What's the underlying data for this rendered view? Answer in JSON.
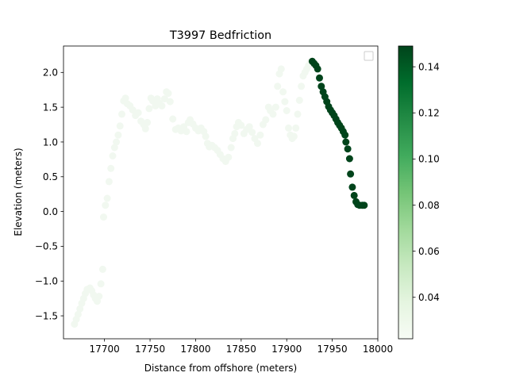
{
  "chart_data": {
    "type": "scatter",
    "title": "T3997 Bedfriction",
    "xlabel": "Distance from offshore (meters)",
    "ylabel": "Elevation (meters)",
    "xlim": [
      17655,
      18000
    ],
    "ylim": [
      -1.83,
      2.38
    ],
    "x_ticks": [
      17700,
      17750,
      17800,
      17850,
      17900,
      17950,
      18000
    ],
    "y_ticks": [
      -1.5,
      -1.0,
      -0.5,
      0.0,
      0.5,
      1.0,
      1.5,
      2.0
    ],
    "grid": false,
    "legend": "top-right (empty)",
    "colormap": "Greens",
    "colorbar": {
      "range": [
        0.022,
        0.149
      ],
      "ticks": [
        0.04,
        0.06,
        0.08,
        0.1,
        0.12,
        0.14
      ],
      "low_color": "#f7fcf5",
      "high_color": "#00441b"
    },
    "series": [
      {
        "bedfriction": 0.025,
        "points": [
          [
            17667,
            -1.62
          ],
          [
            17669,
            -1.55
          ],
          [
            17671,
            -1.48
          ],
          [
            17673,
            -1.4
          ],
          [
            17675,
            -1.32
          ],
          [
            17677,
            -1.25
          ],
          [
            17679,
            -1.18
          ],
          [
            17681,
            -1.12
          ],
          [
            17684,
            -1.1
          ],
          [
            17686,
            -1.14
          ],
          [
            17688,
            -1.2
          ],
          [
            17690,
            -1.25
          ],
          [
            17692,
            -1.29
          ],
          [
            17694,
            -1.22
          ],
          [
            17696,
            -1.04
          ],
          [
            17698,
            -0.83
          ],
          [
            17699,
            -0.08
          ],
          [
            17701,
            0.09
          ],
          [
            17703,
            0.19
          ],
          [
            17705,
            0.43
          ],
          [
            17707,
            0.62
          ],
          [
            17709,
            0.8
          ],
          [
            17711,
            0.92
          ],
          [
            17713,
            1.0
          ],
          [
            17715,
            1.1
          ],
          [
            17717,
            1.23
          ],
          [
            17719,
            1.4
          ],
          [
            17721,
            1.59
          ],
          [
            17723,
            1.63
          ],
          [
            17725,
            1.55
          ],
          [
            17728,
            1.52
          ],
          [
            17731,
            1.46
          ],
          [
            17734,
            1.38
          ],
          [
            17737,
            1.42
          ],
          [
            17740,
            1.3
          ],
          [
            17743,
            1.25
          ],
          [
            17745,
            1.19
          ],
          [
            17747,
            1.28
          ],
          [
            17749,
            1.48
          ],
          [
            17751,
            1.63
          ],
          [
            17753,
            1.59
          ],
          [
            17756,
            1.52
          ],
          [
            17758,
            1.62
          ],
          [
            17760,
            1.56
          ],
          [
            17763,
            1.52
          ],
          [
            17766,
            1.62
          ],
          [
            17768,
            1.72
          ],
          [
            17770,
            1.7
          ],
          [
            17772,
            1.58
          ],
          [
            17775,
            1.33
          ],
          [
            17778,
            1.18
          ],
          [
            17781,
            1.2
          ],
          [
            17784,
            1.16
          ],
          [
            17787,
            1.22
          ],
          [
            17790,
            1.15
          ],
          [
            17792,
            1.28
          ],
          [
            17794,
            1.32
          ],
          [
            17797,
            1.26
          ],
          [
            17800,
            1.2
          ],
          [
            17803,
            1.16
          ],
          [
            17806,
            1.2
          ],
          [
            17809,
            1.15
          ],
          [
            17811,
            1.08
          ],
          [
            17813,
            0.98
          ],
          [
            17815,
            0.93
          ],
          [
            17818,
            0.95
          ],
          [
            17821,
            0.92
          ],
          [
            17824,
            0.88
          ],
          [
            17827,
            0.82
          ],
          [
            17830,
            0.76
          ],
          [
            17833,
            0.72
          ],
          [
            17836,
            0.78
          ],
          [
            17839,
            0.92
          ],
          [
            17841,
            1.05
          ],
          [
            17843,
            1.12
          ],
          [
            17845,
            1.22
          ],
          [
            17847,
            1.28
          ],
          [
            17850,
            1.24
          ],
          [
            17853,
            1.12
          ],
          [
            17856,
            1.18
          ],
          [
            17859,
            1.22
          ],
          [
            17862,
            1.14
          ],
          [
            17865,
            1.05
          ],
          [
            17868,
            0.98
          ],
          [
            17871,
            1.1
          ],
          [
            17874,
            1.25
          ],
          [
            17877,
            1.32
          ],
          [
            17880,
            1.5
          ],
          [
            17882,
            1.45
          ],
          [
            17885,
            1.4
          ],
          [
            17888,
            1.5
          ],
          [
            17890,
            1.8
          ],
          [
            17892,
            1.98
          ],
          [
            17894,
            2.05
          ],
          [
            17896,
            1.72
          ],
          [
            17898,
            1.58
          ],
          [
            17900,
            1.45
          ],
          [
            17902,
            1.2
          ],
          [
            17904,
            1.1
          ],
          [
            17906,
            1.05
          ],
          [
            17908,
            1.08
          ],
          [
            17910,
            1.2
          ],
          [
            17912,
            1.4
          ],
          [
            17914,
            1.6
          ],
          [
            17916,
            1.8
          ],
          [
            17918,
            1.95
          ],
          [
            17920,
            2.0
          ],
          [
            17922,
            2.05
          ],
          [
            17924,
            2.1
          ],
          [
            17926,
            2.15
          ]
        ]
      },
      {
        "bedfriction": 0.149,
        "points": [
          [
            17928,
            2.16
          ],
          [
            17930,
            2.13
          ],
          [
            17932,
            2.1
          ],
          [
            17934,
            2.05
          ],
          [
            17936,
            1.92
          ],
          [
            17938,
            1.8
          ],
          [
            17940,
            1.72
          ],
          [
            17942,
            1.65
          ],
          [
            17944,
            1.58
          ],
          [
            17946,
            1.51
          ],
          [
            17948,
            1.46
          ],
          [
            17950,
            1.42
          ],
          [
            17952,
            1.38
          ],
          [
            17954,
            1.33
          ],
          [
            17956,
            1.28
          ],
          [
            17958,
            1.24
          ],
          [
            17960,
            1.2
          ],
          [
            17962,
            1.15
          ],
          [
            17964,
            1.1
          ],
          [
            17965,
            1.0
          ],
          [
            17967,
            0.9
          ],
          [
            17969,
            0.76
          ],
          [
            17970,
            0.54
          ],
          [
            17972,
            0.35
          ],
          [
            17974,
            0.23
          ],
          [
            17976,
            0.14
          ],
          [
            17978,
            0.1
          ],
          [
            17980,
            0.09
          ],
          [
            17983,
            0.09
          ],
          [
            17985,
            0.09
          ]
        ]
      }
    ]
  }
}
